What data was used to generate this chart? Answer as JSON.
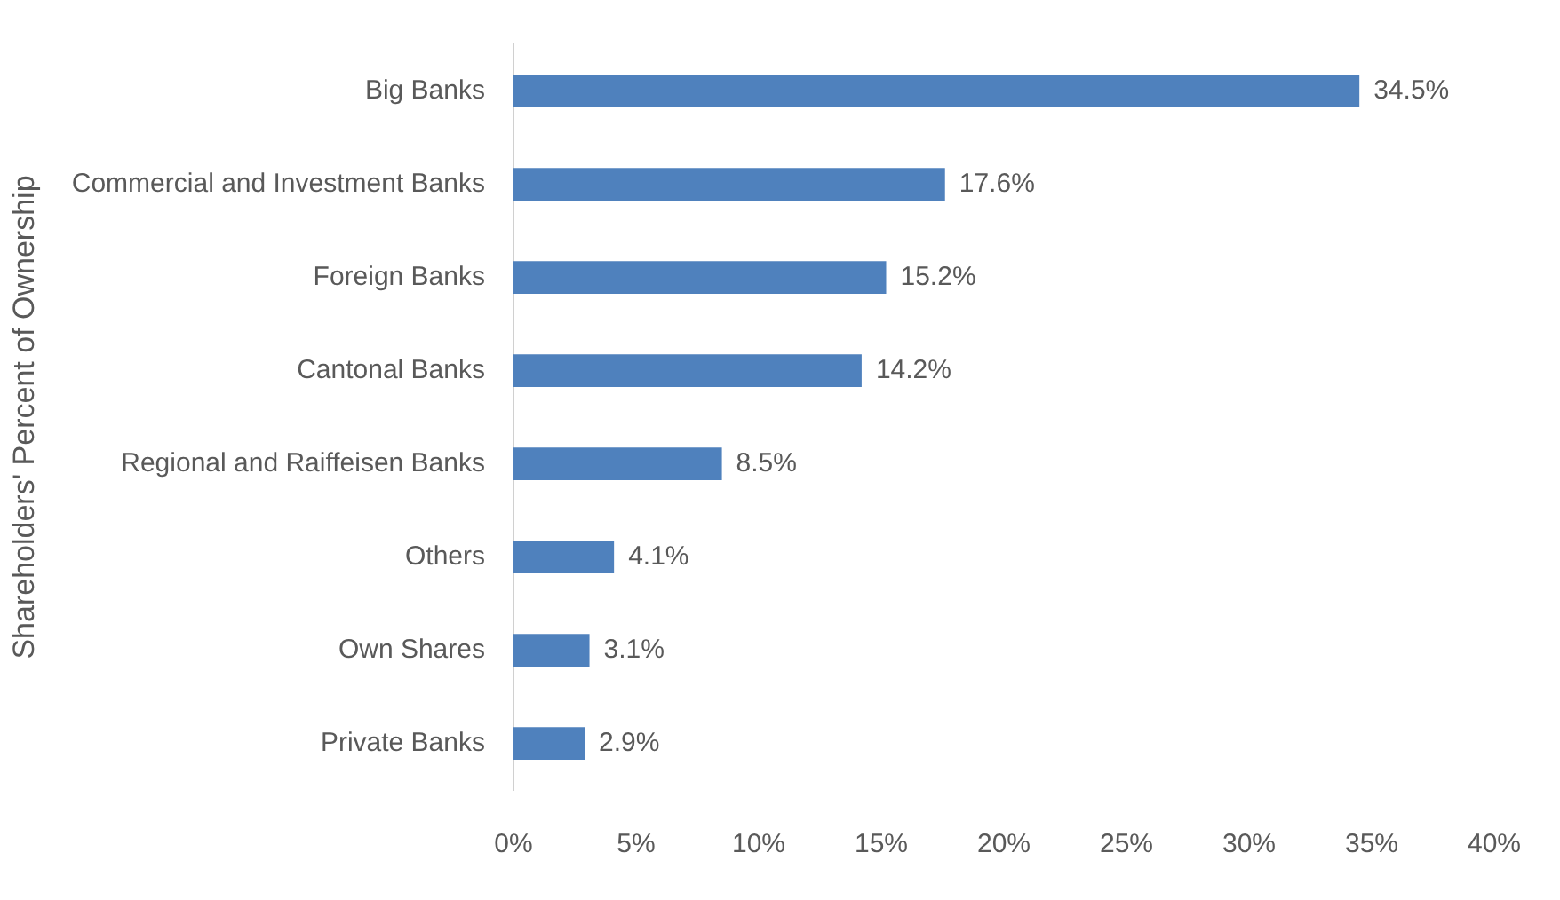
{
  "chart_data": {
    "type": "bar",
    "orientation": "horizontal",
    "ylabel": "Shareholders' Percent of Ownership",
    "categories": [
      "Big Banks",
      "Commercial and Investment Banks",
      "Foreign Banks",
      "Cantonal Banks",
      "Regional and Raiffeisen Banks",
      "Others",
      "Own Shares",
      "Private Banks"
    ],
    "values": [
      34.5,
      17.6,
      15.2,
      14.2,
      8.5,
      4.1,
      3.1,
      2.9
    ],
    "value_labels": [
      "34.5%",
      "17.6%",
      "15.2%",
      "14.2%",
      "8.5%",
      "4.1%",
      "3.1%",
      "2.9%"
    ],
    "color": "#4f81bd",
    "xlim": [
      0,
      40
    ],
    "xticks": [
      {
        "value": 0,
        "label": "0%"
      },
      {
        "value": 5,
        "label": "5%"
      },
      {
        "value": 10,
        "label": "10%"
      },
      {
        "value": 15,
        "label": "15%"
      },
      {
        "value": 20,
        "label": "20%"
      },
      {
        "value": 25,
        "label": "25%"
      },
      {
        "value": 30,
        "label": "30%"
      },
      {
        "value": 35,
        "label": "35%"
      },
      {
        "value": 40,
        "label": "40%"
      }
    ],
    "grid": false,
    "legend": false
  }
}
